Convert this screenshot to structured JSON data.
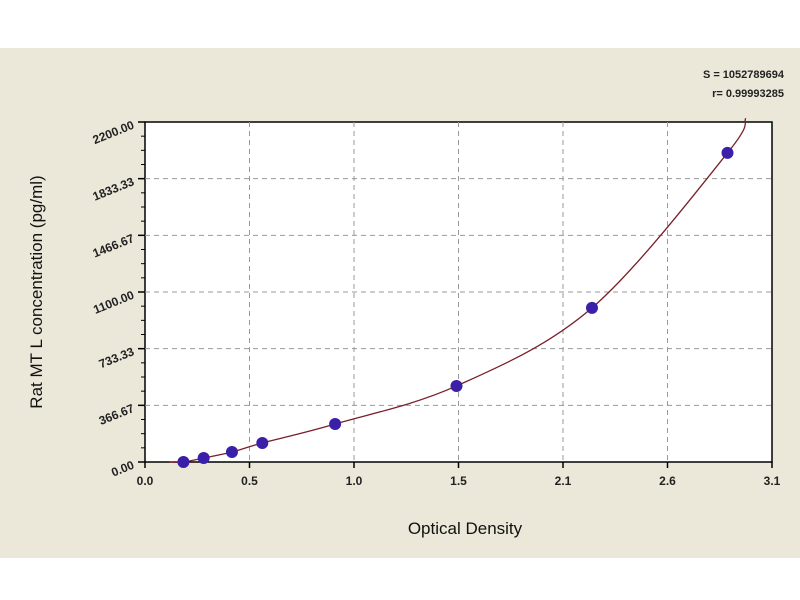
{
  "chart_data": {
    "type": "scatter",
    "title": "",
    "xlabel": "Optical Density",
    "ylabel": "Rat MT L concentration (pg/ml)",
    "xlim": [
      0.0,
      3.1
    ],
    "ylim": [
      0,
      2200
    ],
    "xticks": [
      "0.0",
      "0.5",
      "1.0",
      "1.5",
      "2.1",
      "2.6",
      "3.1"
    ],
    "yticks": [
      "0.00",
      "366.67",
      "733.33",
      "1100.00",
      "1466.67",
      "1833.33",
      "2200.00"
    ],
    "grid": true,
    "annotations": [
      "S = 1052789694",
      "r= 0.99993285"
    ],
    "points": [
      {
        "x": 0.19,
        "y": 0
      },
      {
        "x": 0.29,
        "y": 26
      },
      {
        "x": 0.43,
        "y": 65
      },
      {
        "x": 0.58,
        "y": 123
      },
      {
        "x": 0.94,
        "y": 246
      },
      {
        "x": 1.54,
        "y": 492
      },
      {
        "x": 2.21,
        "y": 997
      },
      {
        "x": 2.88,
        "y": 2000
      }
    ],
    "fit_curve": true,
    "colors": {
      "points": "#3a1fa8",
      "curve": "#7a1f2a",
      "grid": "#9a9a9a",
      "background": "#ebe8da"
    }
  }
}
